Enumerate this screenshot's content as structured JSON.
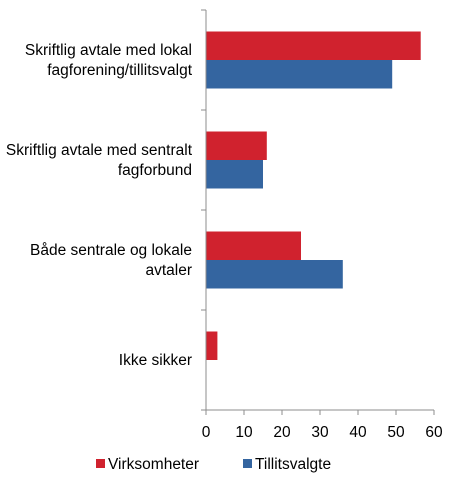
{
  "chart_data": {
    "type": "bar",
    "orientation": "horizontal",
    "categories": [
      [
        "Skriftlig avtale med lokal",
        "fagforening/tillitsvalgt"
      ],
      [
        "Skriftlig avtale med sentralt",
        "fagforbund"
      ],
      [
        "Både sentrale og lokale",
        "avtaler"
      ],
      [
        "Ikke sikker"
      ]
    ],
    "series": [
      {
        "name": "Virksomheter",
        "color": "#d0222e",
        "values": [
          56.5,
          16,
          25,
          3
        ]
      },
      {
        "name": "Tillitsvalgte",
        "color": "#3465a0",
        "values": [
          49,
          15,
          36,
          0
        ]
      }
    ],
    "xticks": [
      0,
      10,
      20,
      30,
      40,
      50,
      60
    ],
    "xlim": [
      0,
      60
    ],
    "title": "",
    "xlabel": "",
    "ylabel": "",
    "grid": false,
    "legend": "bottom"
  }
}
